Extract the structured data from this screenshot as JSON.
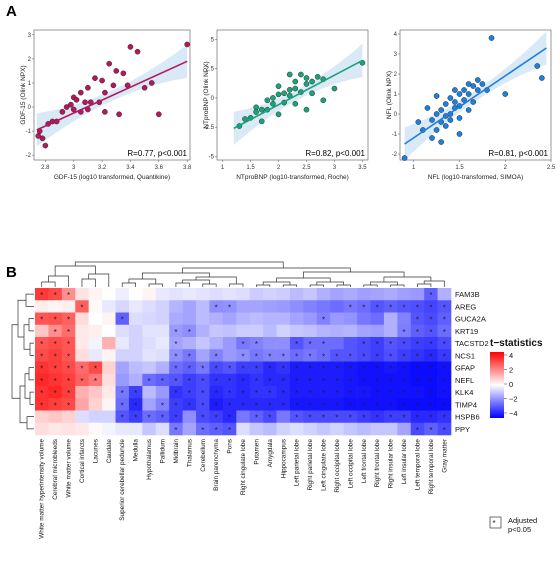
{
  "panel_a_label": "A",
  "panel_b_label": "B",
  "chart_data": [
    {
      "type": "scatter",
      "panel": "A",
      "color": "#b5175a",
      "xlabel": "GDF-15 (log10 transformed, Quantikine)",
      "ylabel": "GDF-15 (Olink NPX)",
      "xlim": [
        2.72,
        3.82
      ],
      "ylim": [
        -2.2,
        3.2
      ],
      "xticks": [
        "2.8",
        "3",
        "3.2",
        "3.4",
        "3.6",
        "3.8"
      ],
      "yticks": [
        "-2",
        "-1",
        "0",
        "1",
        "2",
        "3"
      ],
      "annotation": "R=0.77, p<0.001",
      "fit": {
        "x": [
          2.74,
          3.8
        ],
        "y": [
          -0.95,
          1.9
        ]
      },
      "x": [
        2.76,
        2.78,
        2.8,
        2.85,
        2.88,
        2.92,
        2.95,
        2.98,
        3.0,
        3.0,
        3.02,
        3.05,
        3.05,
        3.08,
        3.1,
        3.1,
        3.12,
        3.15,
        3.18,
        3.2,
        3.22,
        3.22,
        3.25,
        3.28,
        3.3,
        3.32,
        3.35,
        3.38,
        3.4,
        3.45,
        3.5,
        3.55,
        3.6,
        3.8,
        2.75,
        2.82
      ],
      "y": [
        -1.0,
        -1.3,
        -1.6,
        -0.6,
        -0.6,
        -0.2,
        0.0,
        0.1,
        -0.1,
        0.4,
        0.3,
        -0.2,
        0.6,
        0.2,
        -0.1,
        0.8,
        0.2,
        1.2,
        0.2,
        1.1,
        -0.2,
        0.6,
        1.8,
        0.9,
        1.5,
        -0.3,
        1.4,
        0.9,
        2.5,
        2.3,
        0.8,
        1.0,
        -0.3,
        2.6,
        -1.2,
        -0.7
      ]
    },
    {
      "type": "scatter",
      "panel": "A",
      "color": "#1aa37a",
      "xlabel": "NTproBNP (log10-transformed, Roche)",
      "ylabel": "NTproBNP (Olink NPX)",
      "xlim": [
        0.9,
        3.6
      ],
      "ylim": [
        -5.3,
        5.8
      ],
      "xticks": [
        "1",
        "1.5",
        "2",
        "2.5",
        "3",
        "3.5"
      ],
      "yticks": [
        "-5",
        "-2.5",
        "0",
        "2.5",
        "5"
      ],
      "annotation": "R=0.82, p<0.001",
      "fit": {
        "x": [
          1.2,
          3.5
        ],
        "y": [
          -2.6,
          3.2
        ]
      },
      "x": [
        1.3,
        1.4,
        1.5,
        1.6,
        1.7,
        1.7,
        1.8,
        1.8,
        1.9,
        1.9,
        2.0,
        2.0,
        2.0,
        2.1,
        2.1,
        2.2,
        2.2,
        2.3,
        2.3,
        2.3,
        2.4,
        2.4,
        2.5,
        2.5,
        2.5,
        2.6,
        2.6,
        2.7,
        2.8,
        3.0,
        3.5,
        2.2,
        1.6,
        2.8
      ],
      "y": [
        -2.4,
        -1.8,
        -1.7,
        -0.8,
        -1.0,
        -2.0,
        -0.2,
        -1.0,
        0.0,
        -0.5,
        -1.4,
        0.3,
        1.0,
        -0.4,
        0.4,
        0.2,
        0.7,
        0.8,
        1.4,
        -0.5,
        2.0,
        0.5,
        1.2,
        -1.0,
        1.7,
        1.4,
        0.4,
        1.8,
        1.6,
        0.8,
        3.0,
        2.0,
        -1.2,
        -0.2
      ]
    },
    {
      "type": "scatter",
      "panel": "A",
      "color": "#1d7fe0",
      "xlabel": "NFL (log10-transformed, SIMOA)",
      "ylabel": "NFL (Olink NPX)",
      "xlim": [
        0.85,
        2.5
      ],
      "ylim": [
        -2.3,
        4.2
      ],
      "xticks": [
        "1",
        "1.5",
        "2",
        "2.5"
      ],
      "yticks": [
        "-2",
        "-1",
        "0",
        "1",
        "2",
        "3",
        "4"
      ],
      "annotation": "R=0.81, p<0.001",
      "fit": {
        "x": [
          0.9,
          2.45
        ],
        "y": [
          -1.5,
          3.3
        ]
      },
      "x": [
        0.9,
        1.05,
        1.1,
        1.15,
        1.2,
        1.2,
        1.25,
        1.25,
        1.3,
        1.3,
        1.3,
        1.35,
        1.35,
        1.4,
        1.4,
        1.4,
        1.45,
        1.45,
        1.5,
        1.5,
        1.5,
        1.5,
        1.55,
        1.55,
        1.6,
        1.6,
        1.6,
        1.65,
        1.65,
        1.7,
        1.7,
        1.75,
        1.8,
        1.85,
        2.0,
        2.35,
        2.4,
        1.35,
        1.45,
        1.25
      ],
      "y": [
        -2.2,
        -0.4,
        -0.8,
        0.3,
        -0.3,
        -1.2,
        -0.8,
        0.0,
        0.2,
        -0.4,
        -1.4,
        0.5,
        -0.6,
        0.8,
        0.0,
        -0.3,
        0.6,
        1.2,
        0.4,
        1.0,
        -0.2,
        -1.0,
        1.2,
        0.7,
        1.0,
        1.5,
        0.2,
        1.4,
        0.6,
        1.7,
        1.2,
        1.5,
        1.2,
        3.8,
        1.0,
        2.4,
        1.8,
        -0.1,
        0.3,
        0.9
      ]
    },
    {
      "type": "heatmap",
      "panel": "B",
      "legend_title": "t−statistics",
      "legend_ticks": [
        "4",
        "2",
        "0",
        "−2",
        "−4"
      ],
      "legend_star_label": "*",
      "legend_adjusted_line1": "Adjusted",
      "legend_adjusted_line2": "p<0.05",
      "color_scale": {
        "low": "#0000ff",
        "mid": "#ffffff",
        "high": "#ff0000",
        "min": -4.5,
        "max": 4.5
      },
      "rows": [
        "FAM3B",
        "AREG",
        "GUCA2A",
        "KRT19",
        "TACSTD2",
        "NCS1",
        "GFAP",
        "NEFL",
        "KLK4",
        "TIMP4",
        "HSPB6",
        "PPY"
      ],
      "columns": [
        "White matter hyperintensity volume",
        "Cerebral microbleeds",
        "White matter volume",
        "Cortical infarcts",
        "Lacunes",
        "Caudate",
        "Superior cerebellar peduncle",
        "Medulla",
        "Hypothalamus",
        "Pallidum",
        "Midbrain",
        "Thalamus",
        "Cerebellum",
        "Brain parenchyma",
        "Pons",
        "Right cingulate lobe",
        "Putamen",
        "Amygdala",
        "Hippocampus",
        "Left parietal lobe",
        "Right parietal lobe",
        "Left cingulate lobe",
        "Right occipital lobe",
        "Left occipital lobe",
        "Left frontal lobe",
        "Right frontal lobe",
        "Right insular lobe",
        "Left insular lobe",
        "Left temporal lobe",
        "Right temporal lobe",
        "Gray matter"
      ],
      "values": [
        [
          3.5,
          3.2,
          2.0,
          0.5,
          0.2,
          0.0,
          -0.3,
          0.0,
          0.2,
          -0.4,
          -0.5,
          -0.4,
          -0.5,
          -0.6,
          -0.5,
          -0.6,
          -0.9,
          -0.8,
          -0.9,
          -1.2,
          -1.0,
          -1.4,
          -1.6,
          -1.5,
          -1.7,
          -1.6,
          -1.5,
          -1.7,
          -1.8,
          -2.8,
          -1.4
        ],
        [
          0.3,
          0.2,
          0.3,
          2.8,
          0.1,
          -0.4,
          -0.7,
          -0.4,
          -0.6,
          -0.8,
          -1.3,
          -1.6,
          -1.2,
          -2.0,
          -1.9,
          -1.6,
          -1.6,
          -1.7,
          -1.8,
          -2.0,
          -2.2,
          -2.4,
          -2.6,
          -2.4,
          -2.6,
          -3.0,
          -2.8,
          -3.0,
          -3.1,
          -3.3,
          -3.0
        ],
        [
          3.0,
          3.1,
          2.8,
          0.6,
          0.0,
          0.2,
          -2.8,
          -0.6,
          -0.7,
          -0.8,
          -1.5,
          -1.6,
          -1.2,
          -1.4,
          -1.6,
          -1.3,
          -1.2,
          -1.3,
          -1.3,
          -1.6,
          -1.8,
          -2.2,
          -1.8,
          -1.9,
          -2.4,
          -2.6,
          -1.4,
          -2.2,
          -3.0,
          -3.2,
          -2.8
        ],
        [
          1.0,
          2.0,
          2.6,
          0.4,
          0.3,
          0.0,
          -0.6,
          -0.8,
          -0.5,
          -0.5,
          -1.8,
          -2.0,
          -1.4,
          -1.0,
          -1.1,
          -0.9,
          -0.9,
          -1.2,
          -0.8,
          -1.0,
          -1.1,
          -1.3,
          -1.4,
          -1.3,
          -1.6,
          -1.7,
          -1.4,
          -2.3,
          -2.8,
          -3.0,
          -2.6
        ],
        [
          3.0,
          3.2,
          3.0,
          0.4,
          -0.2,
          1.4,
          -0.4,
          -0.8,
          -0.6,
          -0.4,
          -1.6,
          -1.4,
          -1.0,
          -1.4,
          -1.8,
          -2.4,
          -2.2,
          -2.0,
          -2.0,
          -3.0,
          -2.6,
          -2.6,
          -2.6,
          -3.0,
          -3.2,
          -3.4,
          -3.0,
          -3.2,
          -3.4,
          -3.5,
          -3.2
        ],
        [
          3.2,
          3.4,
          3.0,
          0.6,
          -0.4,
          0.2,
          -0.8,
          -0.8,
          -0.5,
          -0.6,
          -2.0,
          -2.4,
          -1.6,
          -2.2,
          -1.8,
          -2.0,
          -2.4,
          -2.2,
          -2.2,
          -2.6,
          -2.4,
          -2.6,
          -3.0,
          -3.0,
          -3.2,
          -3.4,
          -3.1,
          -3.4,
          -3.6,
          -3.8,
          -3.5
        ],
        [
          3.6,
          3.4,
          3.2,
          2.6,
          3.2,
          0.8,
          -1.6,
          -1.2,
          -1.0,
          -1.4,
          -2.6,
          -2.8,
          -2.4,
          -3.2,
          -3.0,
          -3.4,
          -3.4,
          -3.8,
          -3.6,
          -4.0,
          -4.0,
          -4.0,
          -4.0,
          -4.1,
          -4.2,
          -4.2,
          -4.1,
          -4.2,
          -4.3,
          -4.3,
          -4.2
        ],
        [
          3.8,
          3.6,
          3.4,
          2.8,
          2.4,
          0.6,
          -1.8,
          -1.4,
          -2.6,
          -2.8,
          -3.0,
          -3.4,
          -3.2,
          -3.6,
          -3.6,
          -3.8,
          -3.6,
          -3.8,
          -3.8,
          -4.0,
          -4.0,
          -4.0,
          -4.0,
          -4.1,
          -4.2,
          -4.2,
          -4.2,
          -4.2,
          -4.3,
          -4.3,
          -4.2
        ],
        [
          3.6,
          3.8,
          3.4,
          1.4,
          1.0,
          0.4,
          -2.4,
          -3.4,
          -1.2,
          -1.8,
          -3.6,
          -3.4,
          -3.2,
          -3.8,
          -3.6,
          -3.8,
          -3.6,
          -3.6,
          -3.8,
          -4.0,
          -4.0,
          -4.0,
          -4.0,
          -4.1,
          -4.1,
          -4.2,
          -4.2,
          -4.2,
          -4.2,
          -4.3,
          -4.2
        ],
        [
          3.6,
          3.4,
          3.2,
          1.6,
          0.8,
          0.2,
          -2.6,
          -3.8,
          -1.6,
          -2.2,
          -3.4,
          -3.6,
          -3.2,
          -4.0,
          -3.8,
          -3.8,
          -3.8,
          -3.8,
          -3.8,
          -4.1,
          -4.1,
          -4.1,
          -4.1,
          -4.2,
          -4.2,
          -4.2,
          -4.2,
          -4.3,
          -4.3,
          -4.3,
          -4.3
        ],
        [
          0.8,
          1.0,
          0.8,
          -0.6,
          -0.8,
          -0.8,
          -3.0,
          -3.4,
          -2.6,
          -2.8,
          -3.4,
          -2.0,
          -3.2,
          -3.4,
          -3.8,
          -2.4,
          -2.8,
          -3.2,
          -2.4,
          -3.0,
          -3.2,
          -3.2,
          -3.2,
          -3.2,
          -3.4,
          -3.6,
          -3.4,
          -3.4,
          -3.8,
          -3.8,
          -3.6
        ],
        [
          0.6,
          0.4,
          0.5,
          0.4,
          0.1,
          -0.2,
          -0.4,
          -0.4,
          -1.0,
          -0.6,
          -2.4,
          -1.6,
          -2.6,
          -2.8,
          -3.0,
          -0.6,
          -1.0,
          -1.2,
          -0.8,
          -0.6,
          -0.8,
          -1.0,
          -0.8,
          -1.0,
          -1.2,
          -1.0,
          -1.0,
          -1.6,
          -3.2,
          -2.8,
          -3.2
        ]
      ],
      "stars": [
        [
          1,
          1,
          1,
          0,
          0,
          0,
          0,
          0,
          0,
          0,
          0,
          0,
          0,
          0,
          0,
          0,
          0,
          0,
          0,
          0,
          0,
          0,
          0,
          0,
          0,
          0,
          0,
          0,
          0,
          1,
          0
        ],
        [
          0,
          0,
          0,
          1,
          0,
          0,
          0,
          0,
          0,
          0,
          0,
          0,
          0,
          1,
          1,
          0,
          0,
          0,
          0,
          0,
          0,
          0,
          0,
          1,
          1,
          1,
          1,
          1,
          1,
          1,
          1
        ],
        [
          1,
          1,
          1,
          0,
          0,
          0,
          1,
          0,
          0,
          0,
          0,
          0,
          0,
          0,
          0,
          0,
          0,
          0,
          0,
          0,
          0,
          1,
          0,
          0,
          0,
          0,
          0,
          0,
          1,
          1,
          1
        ],
        [
          0,
          1,
          1,
          0,
          0,
          0,
          0,
          0,
          0,
          0,
          1,
          1,
          0,
          0,
          0,
          0,
          0,
          0,
          0,
          0,
          0,
          0,
          0,
          0,
          0,
          0,
          0,
          1,
          1,
          1,
          1
        ],
        [
          1,
          1,
          1,
          0,
          0,
          0,
          0,
          0,
          0,
          0,
          1,
          0,
          0,
          0,
          0,
          1,
          1,
          0,
          0,
          1,
          1,
          1,
          0,
          0,
          1,
          1,
          1,
          1,
          1,
          1,
          1
        ],
        [
          1,
          1,
          1,
          0,
          0,
          0,
          0,
          0,
          0,
          0,
          1,
          1,
          0,
          1,
          0,
          1,
          1,
          1,
          1,
          1,
          1,
          1,
          1,
          1,
          1,
          1,
          1,
          1,
          1,
          1,
          1
        ],
        [
          1,
          1,
          1,
          1,
          1,
          0,
          0,
          0,
          0,
          0,
          1,
          1,
          1,
          1,
          1,
          1,
          1,
          1,
          1,
          1,
          1,
          1,
          1,
          1,
          1,
          1,
          1,
          1,
          1,
          1,
          1
        ],
        [
          1,
          1,
          1,
          1,
          1,
          0,
          0,
          0,
          1,
          1,
          1,
          1,
          1,
          1,
          1,
          1,
          1,
          1,
          1,
          1,
          1,
          1,
          1,
          1,
          1,
          1,
          1,
          1,
          1,
          1,
          1
        ],
        [
          1,
          1,
          1,
          0,
          0,
          0,
          1,
          1,
          0,
          0,
          1,
          1,
          1,
          1,
          1,
          1,
          1,
          1,
          1,
          1,
          1,
          1,
          1,
          1,
          1,
          1,
          1,
          1,
          1,
          1,
          1
        ],
        [
          1,
          1,
          1,
          0,
          0,
          0,
          1,
          1,
          0,
          1,
          1,
          1,
          1,
          1,
          1,
          1,
          1,
          1,
          1,
          1,
          1,
          1,
          1,
          1,
          1,
          1,
          1,
          1,
          1,
          1,
          1
        ],
        [
          0,
          0,
          0,
          0,
          0,
          0,
          1,
          1,
          1,
          1,
          1,
          0,
          1,
          1,
          1,
          0,
          1,
          1,
          0,
          1,
          1,
          1,
          1,
          1,
          1,
          1,
          1,
          1,
          1,
          1,
          1
        ],
        [
          0,
          0,
          0,
          0,
          0,
          0,
          0,
          0,
          0,
          0,
          1,
          0,
          1,
          1,
          1,
          0,
          0,
          0,
          0,
          0,
          0,
          0,
          0,
          0,
          0,
          0,
          0,
          0,
          1,
          1,
          1
        ]
      ]
    }
  ]
}
